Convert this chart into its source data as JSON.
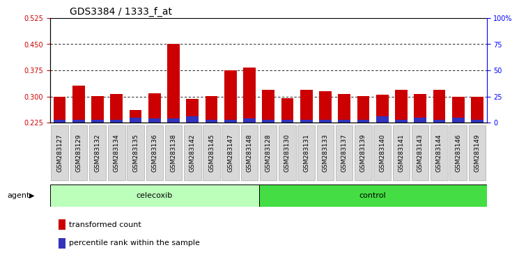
{
  "title": "GDS3384 / 1333_f_at",
  "samples": [
    "GSM283127",
    "GSM283129",
    "GSM283132",
    "GSM283134",
    "GSM283135",
    "GSM283136",
    "GSM283138",
    "GSM283142",
    "GSM283145",
    "GSM283147",
    "GSM283148",
    "GSM283128",
    "GSM283130",
    "GSM283131",
    "GSM283133",
    "GSM283137",
    "GSM283139",
    "GSM283140",
    "GSM283141",
    "GSM283143",
    "GSM283144",
    "GSM283146",
    "GSM283149"
  ],
  "transformed_count": [
    0.3,
    0.33,
    0.302,
    0.307,
    0.262,
    0.31,
    0.45,
    0.294,
    0.302,
    0.374,
    0.382,
    0.32,
    0.295,
    0.32,
    0.315,
    0.307,
    0.301,
    0.305,
    0.319,
    0.308,
    0.32,
    0.299,
    0.3
  ],
  "percentile_rank": [
    3,
    3,
    3,
    3,
    5,
    4,
    4,
    6,
    3,
    3,
    4,
    3,
    3,
    3,
    3,
    3,
    3,
    6,
    3,
    5,
    3,
    5,
    3
  ],
  "ymin": 0.225,
  "ymax": 0.525,
  "yticks_left": [
    0.225,
    0.3,
    0.375,
    0.45,
    0.525
  ],
  "yticks_right": [
    0,
    25,
    50,
    75,
    100
  ],
  "bar_color_red": "#CC0000",
  "bar_color_blue": "#3333BB",
  "bar_width": 0.65,
  "background_color": "#ffffff",
  "celecoxib_count": 11,
  "total_count": 23,
  "group_green_light": "#90EE90",
  "group_green_dark": "#44CC44",
  "legend_red_label": "transformed count",
  "legend_blue_label": "percentile rank within the sample",
  "agent_label": "agent",
  "title_fontsize": 10,
  "tick_fontsize": 7,
  "label_fontsize": 8
}
